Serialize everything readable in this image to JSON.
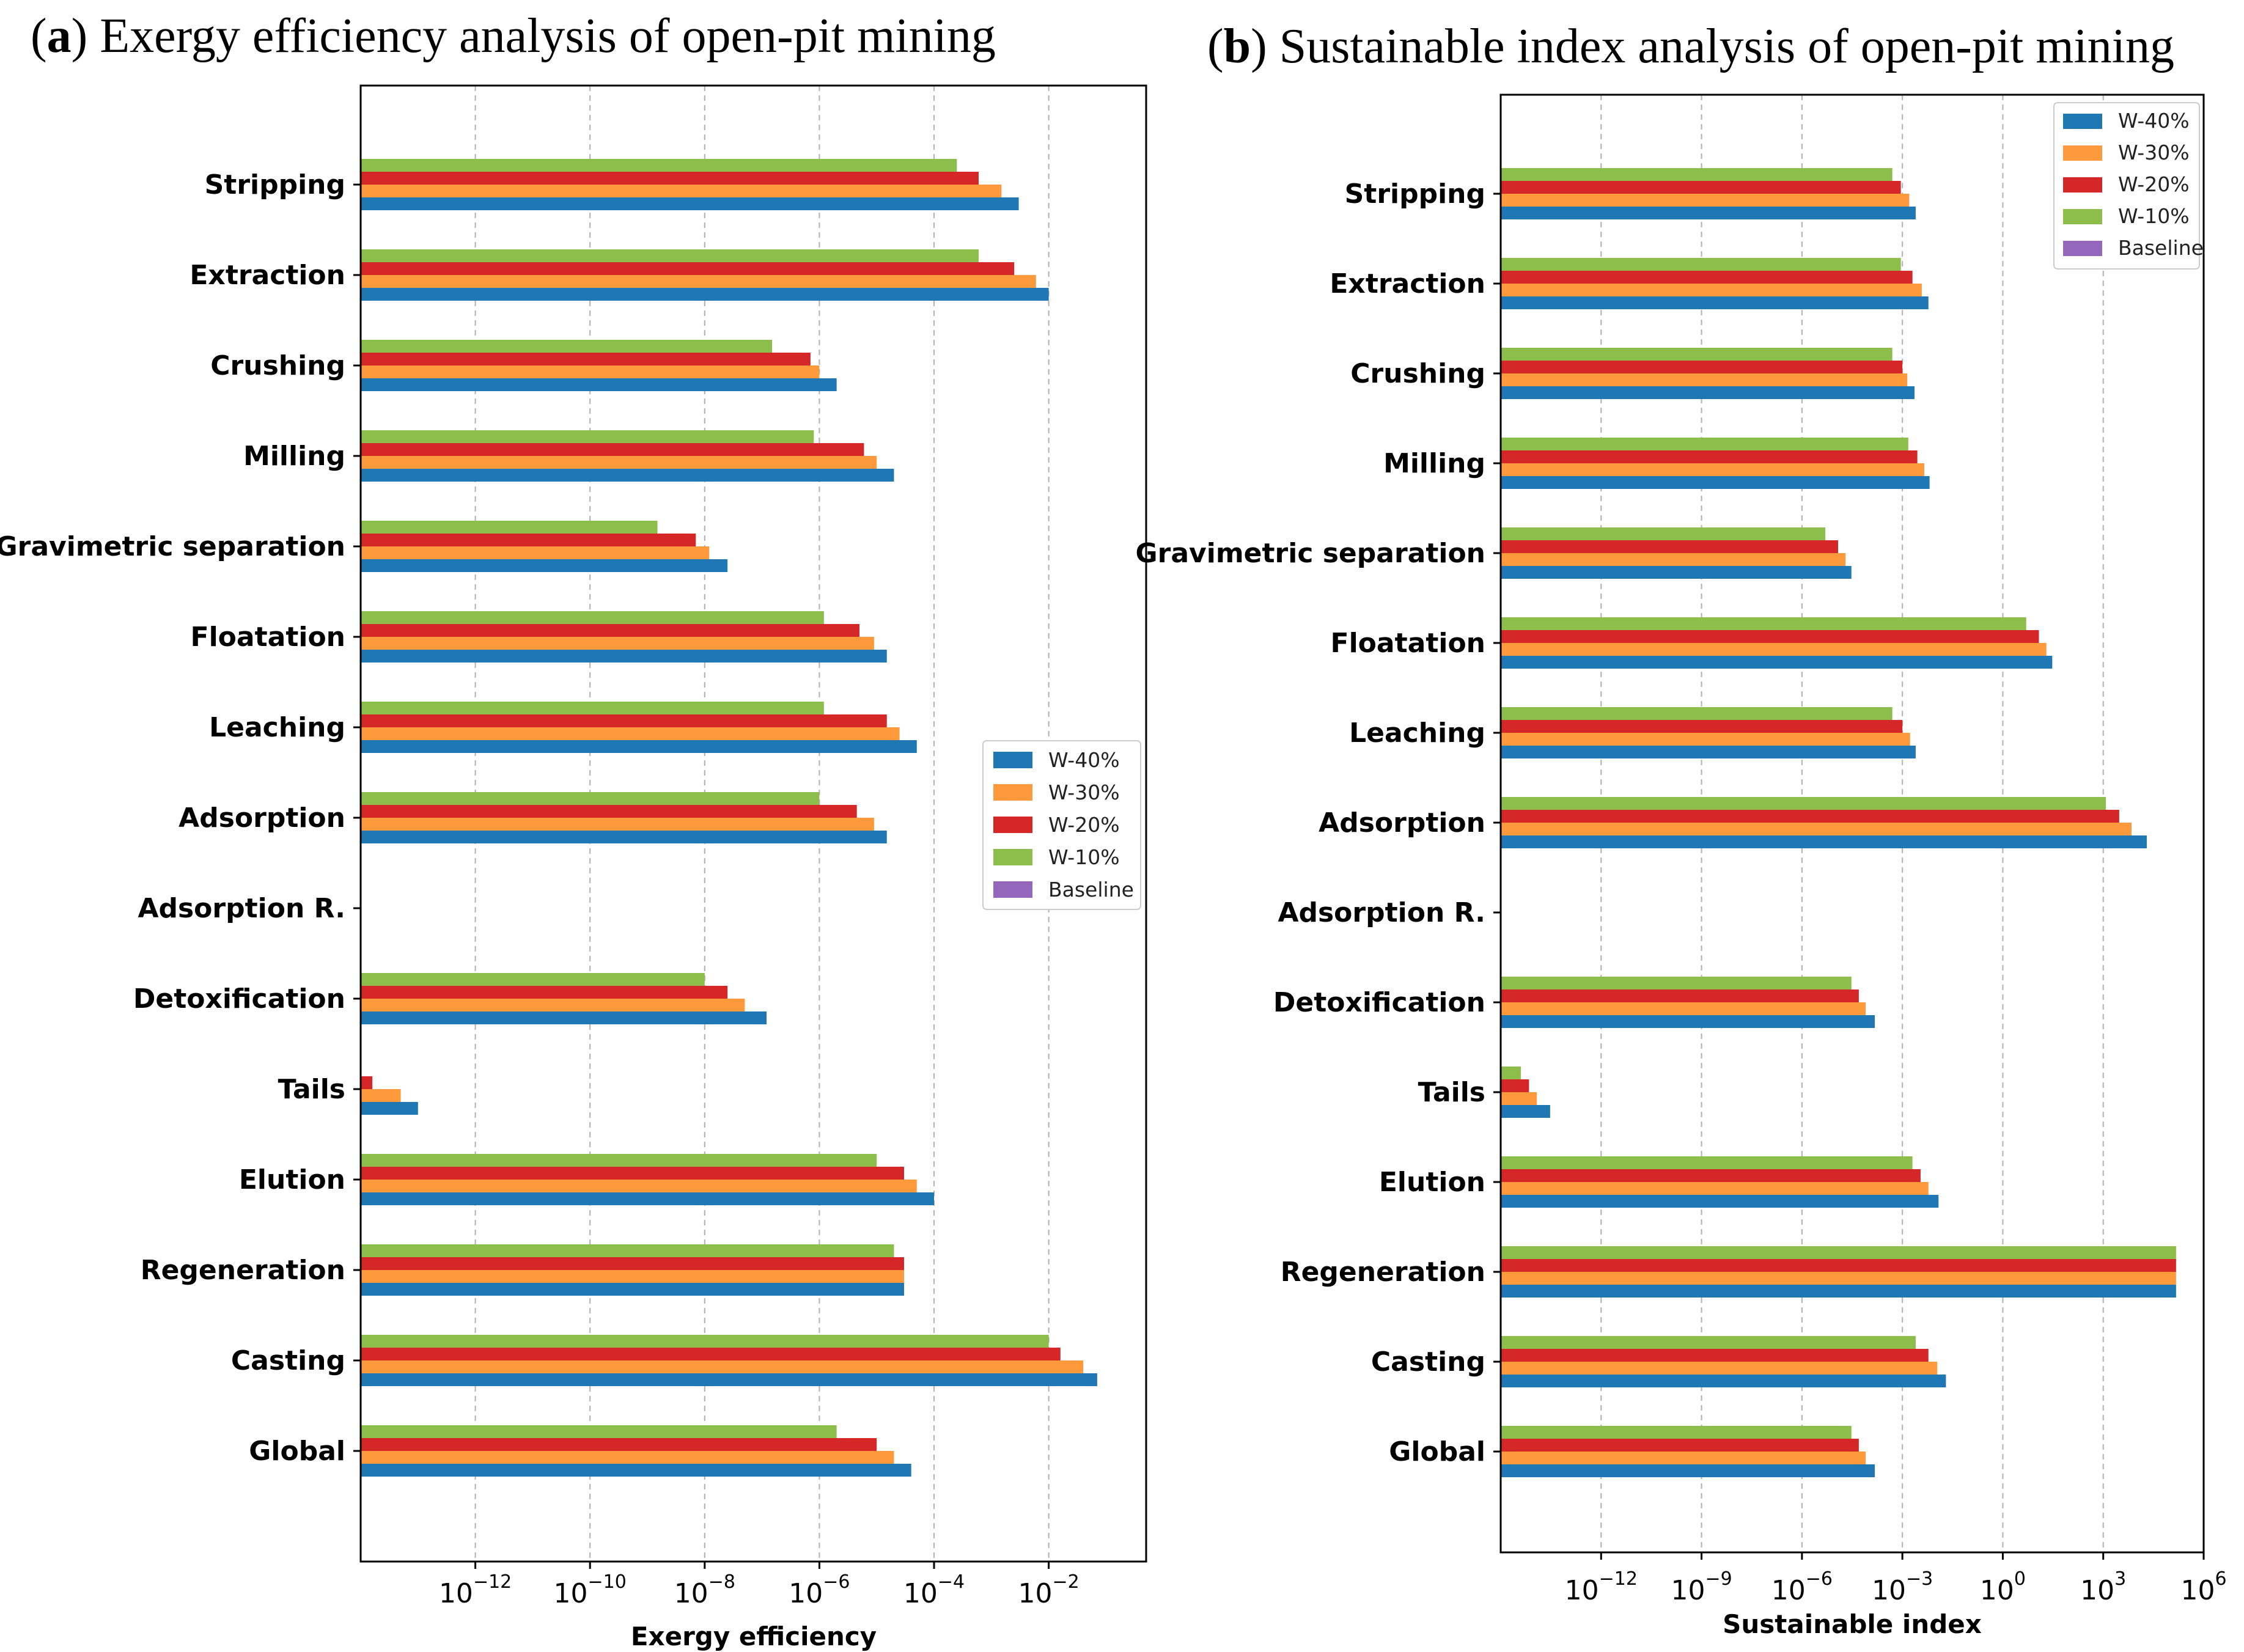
{
  "colors": {
    "W-40%": "#1f77b4",
    "W-30%": "#ff9a3c",
    "W-20%": "#d62728",
    "W-10%": "#8dbe4b",
    "Baseline": "#9467bd"
  },
  "chart_data": [
    {
      "panel_letter": "a",
      "title": "Exergy efficiency analysis of open-pit mining",
      "type": "bar",
      "orientation": "horizontal",
      "xscale": "log",
      "xlabel": "Exergy efficiency",
      "xlim": [
        1e-14,
        0.5
      ],
      "xticks": [
        {
          "exp": -12
        },
        {
          "exp": -10
        },
        {
          "exp": -8
        },
        {
          "exp": -6
        },
        {
          "exp": -4
        },
        {
          "exp": -2
        }
      ],
      "legend_position": "center-right",
      "grid": true,
      "categories": [
        "Stripping",
        "Extraction",
        "Crushing",
        "Milling",
        "Gravimetric separation",
        "Floatation",
        "Leaching",
        "Adsorption",
        "Adsorption R.",
        "Detoxification",
        "Tails",
        "Elution",
        "Regeneration",
        "Casting",
        "Global"
      ],
      "series": [
        {
          "name": "W-40%",
          "values": [
            0.003,
            0.01,
            2e-06,
            2e-05,
            2.5e-08,
            1.5e-05,
            5e-05,
            1.5e-05,
            null,
            1.2e-07,
            1e-13,
            0.0001,
            3e-05,
            0.07,
            4e-05
          ]
        },
        {
          "name": "W-30%",
          "values": [
            0.0015,
            0.006,
            1e-06,
            1e-05,
            1.2e-08,
            9e-06,
            2.5e-05,
            9e-06,
            null,
            5e-08,
            5e-14,
            5e-05,
            3e-05,
            0.04,
            2e-05
          ]
        },
        {
          "name": "W-20%",
          "values": [
            0.0006,
            0.0025,
            7e-07,
            6e-06,
            7e-09,
            5e-06,
            1.5e-05,
            4.5e-06,
            null,
            2.5e-08,
            1.6e-14,
            3e-05,
            3e-05,
            0.016,
            1e-05
          ]
        },
        {
          "name": "W-10%",
          "values": [
            0.00025,
            0.0006,
            1.5e-07,
            8e-07,
            1.5e-09,
            1.2e-06,
            1.2e-06,
            1e-06,
            null,
            1e-08,
            4e-15,
            1e-05,
            2e-05,
            0.01,
            2e-06
          ]
        },
        {
          "name": "Baseline",
          "values": [
            null,
            null,
            null,
            null,
            null,
            null,
            null,
            null,
            null,
            null,
            null,
            null,
            null,
            null,
            null
          ]
        }
      ]
    },
    {
      "panel_letter": "b",
      "title": "Sustainable index analysis of open-pit mining",
      "type": "bar",
      "orientation": "horizontal",
      "xscale": "log",
      "xlabel": "Sustainable index",
      "xlim": [
        1e-15,
        1000000.0
      ],
      "xticks": [
        {
          "exp": -12
        },
        {
          "exp": -9
        },
        {
          "exp": -6
        },
        {
          "exp": -3
        },
        {
          "exp": 0
        },
        {
          "exp": 3
        },
        {
          "exp": 6
        }
      ],
      "legend_position": "top-right",
      "grid": true,
      "categories": [
        "Stripping",
        "Extraction",
        "Crushing",
        "Milling",
        "Gravimetric separation",
        "Floatation",
        "Leaching",
        "Adsorption",
        "Adsorption R.",
        "Detoxification",
        "Tails",
        "Elution",
        "Regeneration",
        "Casting",
        "Global"
      ],
      "series": [
        {
          "name": "W-40%",
          "values": [
            0.0025,
            0.006,
            0.0023,
            0.0065,
            3e-05,
            30,
            0.0025,
            20000,
            null,
            0.00015,
            3e-14,
            0.012,
            150000,
            0.02,
            0.00015
          ]
        },
        {
          "name": "W-30%",
          "values": [
            0.0016,
            0.0038,
            0.0014,
            0.0045,
            2e-05,
            20,
            0.0017,
            7000,
            null,
            8e-05,
            1.2e-14,
            0.006,
            150000,
            0.011,
            8e-05
          ]
        },
        {
          "name": "W-20%",
          "values": [
            0.0009,
            0.002,
            0.001,
            0.0028,
            1.2e-05,
            12,
            0.001,
            3000,
            null,
            5e-05,
            7e-15,
            0.0035,
            150000,
            0.006,
            5e-05
          ]
        },
        {
          "name": "W-10%",
          "values": [
            0.0005,
            0.0009,
            0.0005,
            0.0015,
            5e-06,
            5,
            0.0005,
            1200,
            null,
            3e-05,
            4e-15,
            0.002,
            150000,
            0.0025,
            3e-05
          ]
        },
        {
          "name": "Baseline",
          "values": [
            null,
            null,
            null,
            null,
            null,
            null,
            null,
            null,
            null,
            null,
            null,
            null,
            null,
            null,
            null
          ]
        }
      ]
    }
  ]
}
